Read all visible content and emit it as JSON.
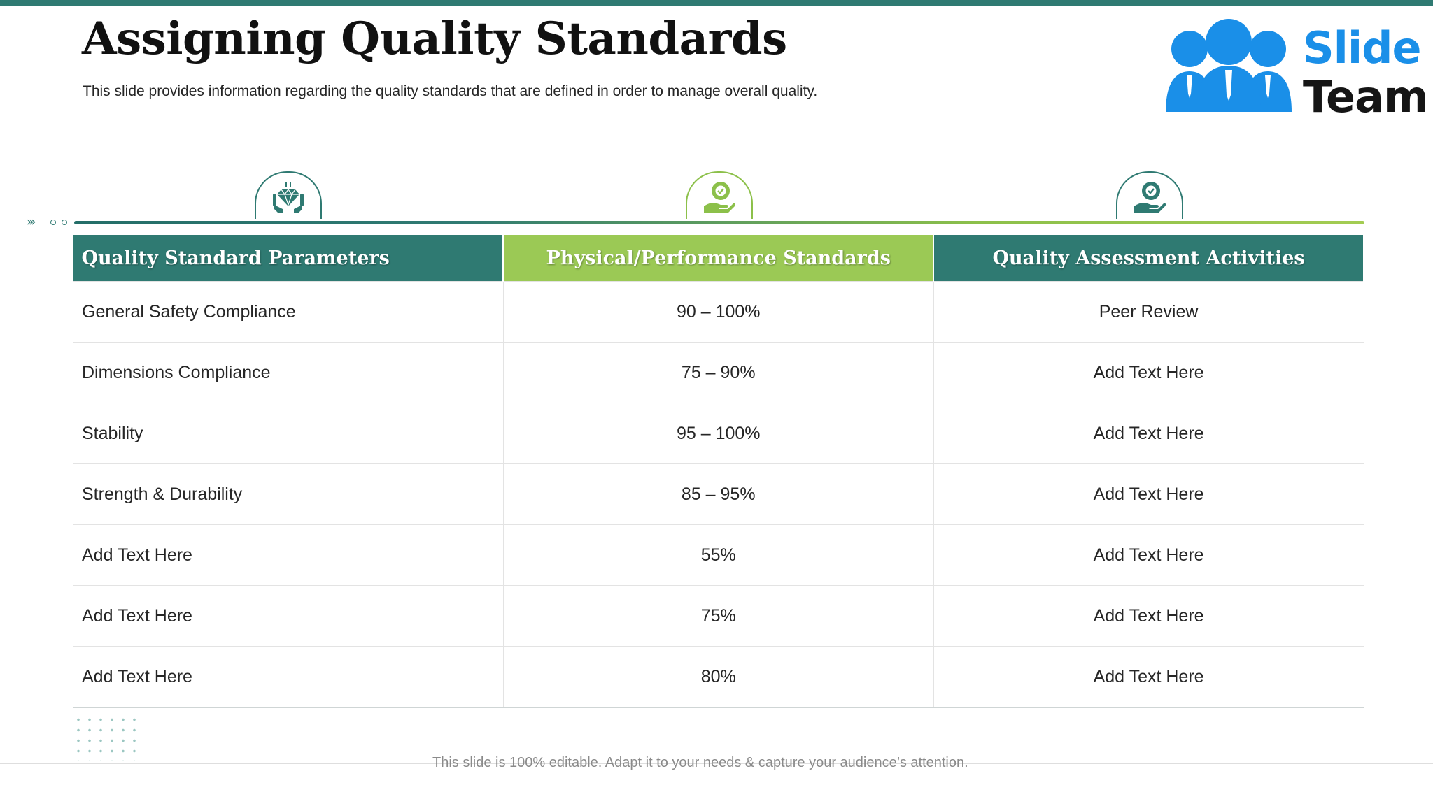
{
  "slide": {
    "title": "Assigning Quality Standards",
    "subtitle": "This slide provides information regarding the quality standards that are defined in order to manage overall quality.",
    "footer": "This slide is 100% editable. Adapt it to your needs & capture your audience’s attention."
  },
  "logo": {
    "line1": "Slide",
    "line2": "Team"
  },
  "icons": [
    "hands-diamond-icon",
    "hand-badge-icon",
    "hand-badge-icon"
  ],
  "colors": {
    "teal": "#2f7a72",
    "green": "#9bc955",
    "logo_blue": "#1a8fe8"
  },
  "table": {
    "headers": [
      "Quality Standard Parameters",
      "Physical/Performance Standards",
      "Quality Assessment Activities"
    ],
    "rows": [
      [
        "General Safety Compliance",
        "90 – 100%",
        "Peer Review"
      ],
      [
        "Dimensions Compliance",
        "75 – 90%",
        "Add Text Here"
      ],
      [
        "Stability",
        "95 – 100%",
        "Add Text Here"
      ],
      [
        "Strength & Durability",
        "85 – 95%",
        "Add Text Here"
      ],
      [
        "Add Text Here",
        "55%",
        "Add Text Here"
      ],
      [
        "Add Text Here",
        "75%",
        "Add Text Here"
      ],
      [
        "Add Text Here",
        "80%",
        "Add Text Here"
      ]
    ]
  }
}
